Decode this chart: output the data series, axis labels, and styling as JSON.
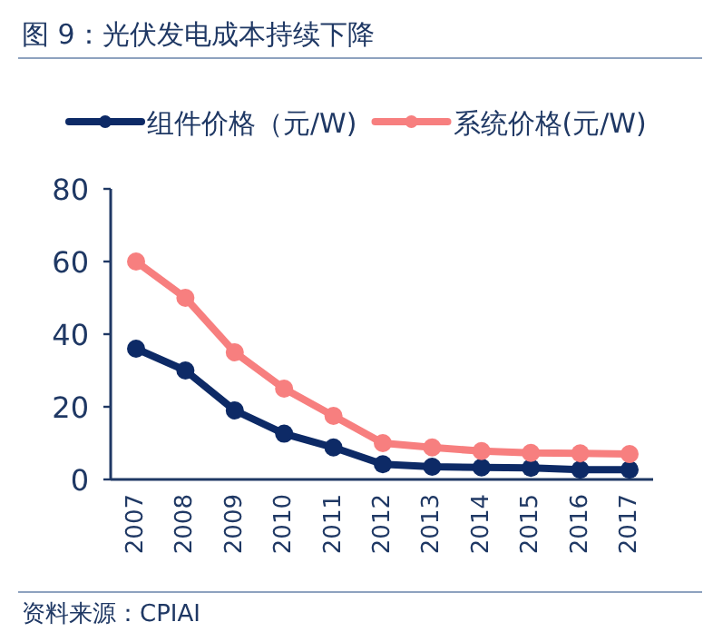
{
  "chart_data": {
    "type": "line",
    "title": "图 9：光伏发电成本持续下降",
    "categories": [
      "2007",
      "2008",
      "2009",
      "2010",
      "2011",
      "2012",
      "2013",
      "2014",
      "2015",
      "2016",
      "2017"
    ],
    "series": [
      {
        "name": "组件价格（元/W)",
        "color": "#0d2a66",
        "values": [
          36,
          30,
          19,
          12.6,
          8.8,
          4.2,
          3.5,
          3.3,
          3.2,
          2.7,
          2.7
        ]
      },
      {
        "name": "系统价格(元/W)",
        "color": "#f77f7f",
        "values": [
          60,
          50,
          35,
          25,
          17.5,
          10,
          8.8,
          7.8,
          7.3,
          7.2,
          7
        ]
      }
    ],
    "ylim": [
      0,
      80
    ],
    "yticks": [
      0,
      20,
      40,
      60,
      80
    ],
    "legend": "top",
    "marker": "circle",
    "grid": false,
    "annotations": [
      "资料来源：CPIAI"
    ]
  }
}
